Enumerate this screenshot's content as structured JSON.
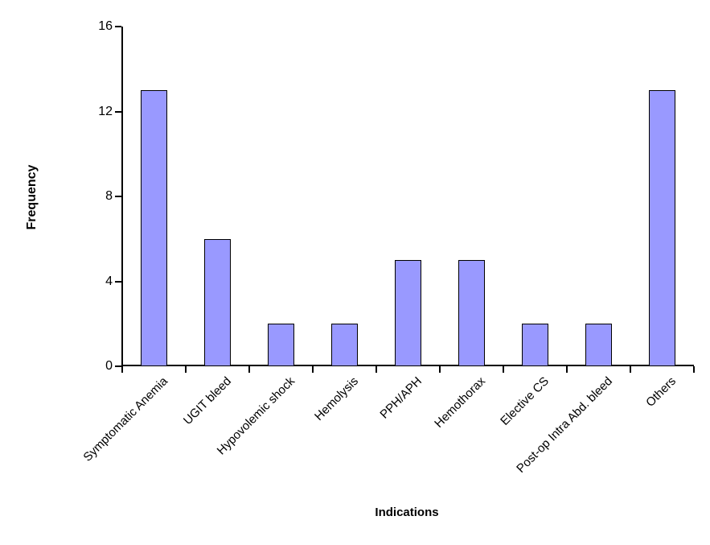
{
  "chart_data": {
    "type": "bar",
    "title": "",
    "xlabel": "Indications",
    "ylabel": "Frequency",
    "categories": [
      "Symptomatic Anemia",
      "UGIT bleed",
      "Hypovolemic shock",
      "Hemolysis",
      "PPH/APH",
      "Hemothorax",
      "Elective CS",
      "Post-op Intra Abd. bleed",
      "Others"
    ],
    "values": [
      13,
      6,
      2,
      2,
      5,
      5,
      2,
      2,
      13
    ],
    "ylim": [
      0,
      16
    ],
    "yticks": [
      0,
      4,
      8,
      12,
      16
    ],
    "grid": false,
    "legend_position": "none",
    "colors": {
      "bar_fill": "#9999FF",
      "bar_border": "#000000",
      "axis": "#000000",
      "text": "#000000",
      "background": "#FFFFFF"
    }
  }
}
